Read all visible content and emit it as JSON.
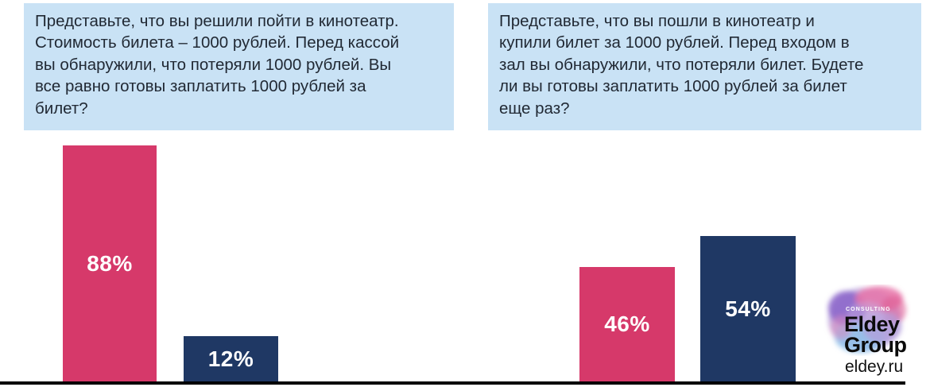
{
  "questions": [
    {
      "text": "Представьте, что вы решили пойти в кинотеатр.\nСтоимость билета – 1000 рублей. Перед кассой\nвы обнаружили, что потеряли 1000 рублей. Вы\nвсе равно готовы заплатить 1000 рублей за\nбилет?"
    },
    {
      "text": "Представьте, что вы пошли в кинотеатр и\nкупили билет за 1000 рублей. Перед входом в\nзал вы обнаружили, что потеряли билет. Будете\nли вы готовы заплатить 1000 рублей за билет\nеще раз?"
    }
  ],
  "chart_data": [
    {
      "type": "bar",
      "question": "Представьте, что вы решили пойти в кинотеатр. Стоимость билета – 1000 рублей. Перед кассой вы обнаружили, что потеряли 1000 рублей. Вы все равно готовы заплатить 1000 рублей за билет?",
      "values": [
        88,
        12
      ],
      "labels": [
        "88%",
        "12%"
      ],
      "bar_colors": [
        "#d6396a",
        "#1f3864"
      ],
      "ylim": [
        0,
        100
      ],
      "axis": "baseline-only",
      "legend": "none"
    },
    {
      "type": "bar",
      "question": "Представьте, что вы пошли в кинотеатр и купили билет за 1000 рублей. Перед входом в зал вы обнаружили, что потеряли билет. Будете ли вы готовы заплатить 1000 рублей за билет еще раз?",
      "values": [
        46,
        54
      ],
      "labels": [
        "46%",
        "54%"
      ],
      "bar_colors": [
        "#d6396a",
        "#1f3864"
      ],
      "ylim": [
        0,
        100
      ],
      "axis": "baseline-only",
      "legend": "none"
    }
  ],
  "branding": {
    "consulting_label": "CONSULTING",
    "name_line1": "Eldey",
    "name_line2": "Group",
    "website": "eldey.ru"
  },
  "colors": {
    "background": "#ffffff",
    "question_box_bg": "#c9e2f5",
    "question_text": "#212934",
    "pink": "#d6396a",
    "navy": "#1f3864",
    "bar_label": "#ffffff",
    "baseline": "#000000",
    "logo_purple": "#8a63c9",
    "logo_pink": "#e873a8",
    "logo_blue": "#8fc1ea"
  }
}
